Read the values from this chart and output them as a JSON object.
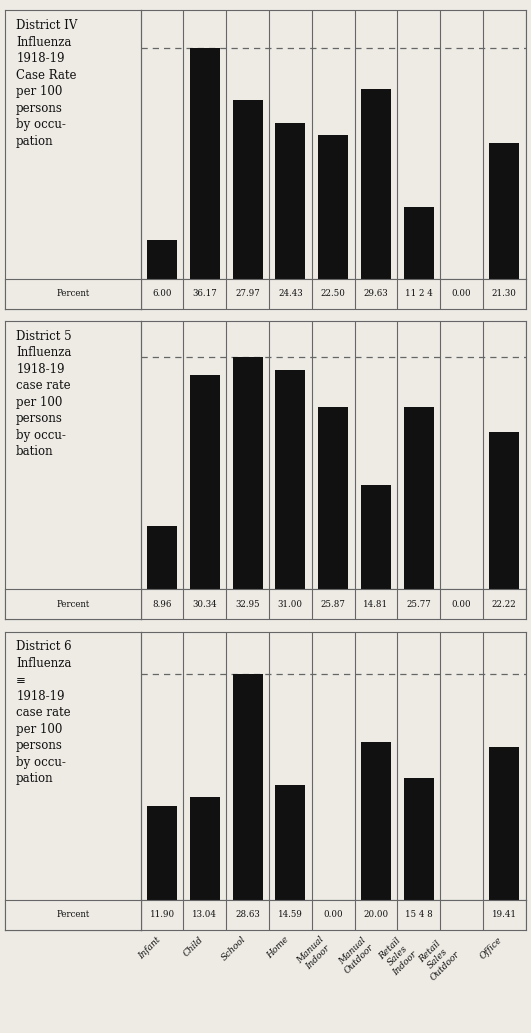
{
  "districts": [
    {
      "title": "District IV\nInfluenza\n1918-19\nCase Rate\nper 100\npersons\nby occu-\npation",
      "values": [
        6.0,
        36.17,
        27.97,
        24.43,
        22.5,
        29.63,
        11.24,
        0.0,
        21.3
      ],
      "percent_labels": [
        "6.00",
        "36.17",
        "27.97",
        "24.43",
        "22.50",
        "29.63",
        "11 2 4",
        "0.00",
        "21.30"
      ],
      "dashed_line_y": 36.17,
      "ymax": 42
    },
    {
      "title": "District 5\nInfluenza\n1918-19\ncase rate\nper 100\npersons\nby occu-\nbation",
      "values": [
        8.96,
        30.34,
        32.95,
        31.0,
        25.87,
        14.81,
        25.77,
        0.0,
        22.22
      ],
      "percent_labels": [
        "8.96",
        "30.34",
        "32.95",
        "31.00",
        "25.87",
        "14.81",
        "25.77",
        "0.00",
        "22.22"
      ],
      "dashed_line_y": 32.95,
      "ymax": 38
    },
    {
      "title": "District 6\nInfluenza\n≡\n1918-19\ncase rate\nper 100\npersons\nby occu-\npation",
      "values": [
        11.9,
        13.04,
        28.63,
        14.59,
        0.0,
        20.0,
        15.48,
        0.0,
        19.41
      ],
      "percent_labels": [
        "11.90",
        "13.04",
        "28.63",
        "14.59",
        "0.00",
        "20.00",
        "15 4 8",
        "",
        "19.41"
      ],
      "dashed_line_y": 28.63,
      "ymax": 34
    }
  ],
  "categories": [
    "Infant",
    "Child",
    "School",
    "Home",
    "Manual\nIndoor",
    "Manual\nOutdoor",
    "Retail\nSales\nIndoor",
    "Retail\nSales\nOutdoor",
    "Office"
  ],
  "bar_color": "#111111",
  "background_color": "#eeebe5",
  "text_color": "#111111",
  "border_color": "#666666",
  "dashed_color": "#666666",
  "title_fontsize": 8.5,
  "percent_fontsize": 6.2,
  "xtick_fontsize": 6.5,
  "bar_width": 0.7,
  "n_cats": 9
}
